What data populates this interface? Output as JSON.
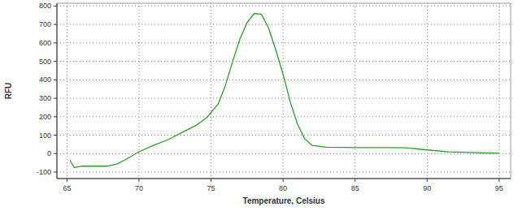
{
  "chart_data": {
    "type": "line",
    "x_label": "Temperature, Celsius",
    "y_label": "RFU",
    "x": [
      65.2,
      65.5,
      66,
      67,
      67.8,
      68.5,
      69,
      70,
      71,
      72,
      73,
      74,
      74.7,
      75.5,
      76,
      76.5,
      77,
      77.5,
      78,
      78.5,
      79,
      79.5,
      80,
      80.5,
      81,
      81.5,
      82,
      83,
      85,
      87,
      88.5,
      90,
      91.5,
      95
    ],
    "values": [
      -35,
      -75,
      -68,
      -68,
      -68,
      -55,
      -35,
      10,
      45,
      75,
      115,
      155,
      195,
      270,
      370,
      500,
      620,
      710,
      760,
      755,
      680,
      560,
      430,
      280,
      160,
      80,
      45,
      35,
      33,
      33,
      32,
      20,
      10,
      2
    ],
    "color": "#2e9a2e",
    "xlim": [
      64.3,
      95.8
    ],
    "ylim": [
      -135,
      815
    ],
    "xticks": [
      65,
      70,
      75,
      80,
      85,
      90,
      95
    ],
    "yticks": [
      -100,
      0,
      100,
      200,
      300,
      400,
      500,
      600,
      700,
      800
    ],
    "grid": true
  }
}
